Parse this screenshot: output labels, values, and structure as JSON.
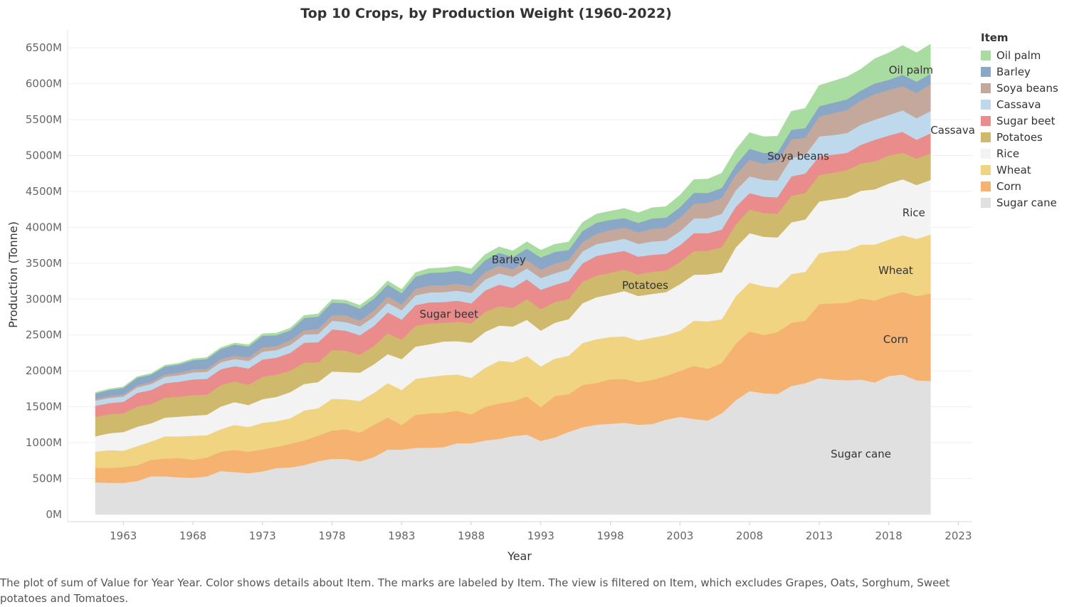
{
  "chart_data": {
    "type": "area",
    "stacked": true,
    "title": "Top 10 Crops, by Production Weight (1960-2022)",
    "xlabel": "Year",
    "ylabel": "Production (Tonne)",
    "xlim": [
      1959,
      2024
    ],
    "ylim": [
      -100,
      6750
    ],
    "x_ticks": [
      1963,
      1968,
      1973,
      1978,
      1983,
      1988,
      1993,
      1998,
      2003,
      2008,
      2013,
      2018,
      2023
    ],
    "y_ticks": [
      0,
      500,
      1000,
      1500,
      2000,
      2500,
      3000,
      3500,
      4000,
      4500,
      5000,
      5500,
      6000,
      6500
    ],
    "y_tick_suffix": "M",
    "grid": true,
    "legend": {
      "title": "Item",
      "position": "right"
    },
    "x": [
      1961,
      1962,
      1963,
      1964,
      1965,
      1966,
      1967,
      1968,
      1969,
      1970,
      1971,
      1972,
      1973,
      1974,
      1975,
      1976,
      1977,
      1978,
      1979,
      1980,
      1981,
      1982,
      1983,
      1984,
      1985,
      1986,
      1987,
      1988,
      1989,
      1990,
      1991,
      1992,
      1993,
      1994,
      1995,
      1996,
      1997,
      1998,
      1999,
      2000,
      2001,
      2002,
      2003,
      2004,
      2005,
      2006,
      2007,
      2008,
      2009,
      2010,
      2011,
      2012,
      2013,
      2014,
      2015,
      2016,
      2017,
      2018,
      2019,
      2020,
      2021
    ],
    "series": [
      {
        "name": "Sugar cane",
        "color": "#e0e0e0",
        "values": [
          448,
          441,
          440,
          466,
          533,
          531,
          518,
          511,
          531,
          606,
          591,
          575,
          600,
          646,
          655,
          688,
          743,
          775,
          774,
          739,
          800,
          905,
          903,
          929,
          930,
          938,
          993,
          994,
          1030,
          1053,
          1093,
          1112,
          1025,
          1073,
          1150,
          1216,
          1251,
          1264,
          1279,
          1250,
          1260,
          1322,
          1360,
          1330,
          1310,
          1410,
          1590,
          1720,
          1690,
          1680,
          1790,
          1830,
          1900,
          1880,
          1870,
          1880,
          1840,
          1930,
          1950,
          1870,
          1860
        ]
      },
      {
        "name": "Corn",
        "color": "#f5b271",
        "values": [
          205,
          206,
          220,
          220,
          228,
          248,
          270,
          251,
          261,
          268,
          307,
          299,
          305,
          296,
          331,
          344,
          355,
          394,
          410,
          402,
          447,
          448,
          342,
          460,
          478,
          478,
          453,
          400,
          470,
          493,
          482,
          533,
          470,
          578,
          525,
          588,
          581,
          620,
          609,
          592,
          614,
          605,
          640,
          740,
          720,
          700,
          790,
          830,
          810,
          860,
          880,
          870,
          1030,
          1060,
          1080,
          1130,
          1140,
          1120,
          1150,
          1170,
          1220
        ]
      },
      {
        "name": "Wheat",
        "color": "#f0d481",
        "values": [
          222,
          250,
          228,
          267,
          256,
          311,
          300,
          335,
          312,
          314,
          350,
          345,
          372,
          356,
          356,
          417,
          382,
          443,
          420,
          440,
          445,
          477,
          490,
          500,
          508,
          524,
          505,
          509,
          544,
          595,
          549,
          563,
          568,
          520,
          537,
          585,
          610,
          589,
          594,
          582,
          589,
          572,
          560,
          630,
          660,
          610,
          660,
          680,
          680,
          620,
          680,
          680,
          710,
          730,
          730,
          750,
          780,
          780,
          790,
          800,
          820
        ]
      },
      {
        "name": "Rice",
        "color": "#f3f3f3",
        "values": [
          215,
          235,
          260,
          270,
          254,
          260,
          275,
          280,
          285,
          316,
          318,
          306,
          330,
          340,
          364,
          370,
          365,
          380,
          380,
          395,
          400,
          405,
          430,
          450,
          455,
          470,
          464,
          490,
          500,
          490,
          495,
          505,
          498,
          500,
          510,
          555,
          585,
          595,
          630,
          620,
          610,
          600,
          650,
          640,
          655,
          655,
          680,
          690,
          690,
          700,
          720,
          730,
          720,
          720,
          740,
          750,
          770,
          780,
          780,
          750,
          760
        ]
      },
      {
        "name": "Potatoes",
        "color": "#ceb96c",
        "values": [
          270,
          267,
          262,
          278,
          267,
          278,
          278,
          287,
          280,
          298,
          290,
          283,
          312,
          310,
          300,
          298,
          272,
          300,
          298,
          250,
          255,
          290,
          270,
          290,
          290,
          260,
          270,
          270,
          280,
          270,
          260,
          290,
          300,
          290,
          280,
          300,
          300,
          300,
          300,
          300,
          310,
          300,
          310,
          330,
          330,
          350,
          320,
          330,
          330,
          330,
          370,
          370,
          370,
          370,
          380,
          380,
          390,
          390,
          370,
          370,
          370
        ]
      },
      {
        "name": "Sugar beet",
        "color": "#ea8c8c",
        "values": [
          155,
          153,
          159,
          192,
          196,
          201,
          209,
          218,
          220,
          221,
          211,
          227,
          240,
          236,
          246,
          276,
          283,
          286,
          278,
          271,
          280,
          292,
          280,
          288,
          294,
          290,
          293,
          278,
          297,
          302,
          279,
          272,
          270,
          237,
          252,
          256,
          275,
          272,
          260,
          248,
          235,
          232,
          231,
          250,
          243,
          245,
          246,
          227,
          228,
          228,
          270,
          270,
          260,
          253,
          238,
          260,
          300,
          280,
          290,
          260,
          280
        ]
      },
      {
        "name": "Cassava",
        "color": "#bfd9ec",
        "values": [
          71,
          72,
          74,
          79,
          83,
          88,
          90,
          97,
          99,
          98,
          100,
          104,
          108,
          107,
          110,
          115,
          112,
          120,
          121,
          124,
          128,
          130,
          130,
          136,
          137,
          138,
          139,
          145,
          152,
          156,
          155,
          153,
          163,
          161,
          164,
          165,
          165,
          163,
          170,
          177,
          184,
          186,
          195,
          203,
          209,
          219,
          228,
          233,
          234,
          235,
          254,
          260,
          277,
          272,
          276,
          280,
          280,
          285,
          300,
          300,
          310
        ]
      },
      {
        "name": "Soya beans",
        "color": "#c4a89c",
        "values": [
          27,
          27,
          29,
          29,
          32,
          36,
          37,
          42,
          42,
          44,
          46,
          49,
          62,
          55,
          66,
          59,
          73,
          78,
          94,
          81,
          86,
          94,
          80,
          93,
          101,
          95,
          100,
          95,
          108,
          108,
          103,
          117,
          116,
          137,
          127,
          130,
          144,
          160,
          157,
          161,
          178,
          181,
          191,
          205,
          214,
          221,
          219,
          231,
          223,
          265,
          262,
          241,
          276,
          307,
          323,
          335,
          358,
          349,
          337,
          353,
          372
        ]
      },
      {
        "name": "Barley",
        "color": "#8ba7c8",
        "values": [
          72,
          84,
          90,
          104,
          98,
          109,
          113,
          128,
          136,
          139,
          153,
          151,
          161,
          150,
          136,
          170,
          171,
          178,
          167,
          166,
          165,
          162,
          159,
          169,
          173,
          181,
          178,
          169,
          162,
          179,
          170,
          159,
          170,
          161,
          141,
          155,
          153,
          142,
          130,
          132,
          143,
          138,
          144,
          153,
          138,
          139,
          133,
          155,
          152,
          124,
          133,
          132,
          144,
          144,
          147,
          141,
          147,
          141,
          159,
          157,
          146
        ]
      },
      {
        "name": "Oil palm",
        "color": "#a8dca0",
        "values": [
          14,
          14,
          15,
          15,
          16,
          17,
          17,
          18,
          20,
          20,
          22,
          25,
          27,
          29,
          32,
          35,
          37,
          39,
          42,
          44,
          48,
          50,
          50,
          55,
          61,
          62,
          66,
          72,
          77,
          82,
          86,
          95,
          101,
          106,
          110,
          118,
          121,
          120,
          134,
          140,
          149,
          153,
          165,
          184,
          194,
          205,
          212,
          222,
          226,
          227,
          257,
          275,
          289,
          300,
          312,
          297,
          343,
          375,
          407,
          402,
          413
        ]
      }
    ],
    "area_labels": [
      {
        "series": "Sugar cane",
        "text": "Sugar cane",
        "x": 2016,
        "y": 840
      },
      {
        "series": "Corn",
        "text": "Corn",
        "x": 2018.5,
        "y": 2440
      },
      {
        "series": "Wheat",
        "text": "Wheat",
        "x": 2018.5,
        "y": 3400
      },
      {
        "series": "Rice",
        "text": "Rice",
        "x": 2019.8,
        "y": 4200
      },
      {
        "series": "Potatoes",
        "text": "Potatoes",
        "x": 2000.5,
        "y": 3190
      },
      {
        "series": "Sugar beet",
        "text": "Sugar beet",
        "x": 1986.4,
        "y": 2790
      },
      {
        "series": "Cassava",
        "text": "Cassava",
        "x": 2022.6,
        "y": 5350
      },
      {
        "series": "Soya beans",
        "text": "Soya beans",
        "x": 2011.5,
        "y": 4990
      },
      {
        "series": "Barley",
        "text": "Barley",
        "x": 1990.7,
        "y": 3550
      },
      {
        "series": "Oil palm",
        "text": "Oil palm",
        "x": 2019.6,
        "y": 6190
      }
    ]
  },
  "legend_items": [
    {
      "label": "Oil palm",
      "color": "#a8dca0"
    },
    {
      "label": "Barley",
      "color": "#8ba7c8"
    },
    {
      "label": "Soya beans",
      "color": "#c4a89c"
    },
    {
      "label": "Cassava",
      "color": "#bfd9ec"
    },
    {
      "label": "Sugar beet",
      "color": "#ea8c8c"
    },
    {
      "label": "Potatoes",
      "color": "#ceb96c"
    },
    {
      "label": "Rice",
      "color": "#f3f3f3"
    },
    {
      "label": "Wheat",
      "color": "#f0d481"
    },
    {
      "label": "Corn",
      "color": "#f5b271"
    },
    {
      "label": "Sugar cane",
      "color": "#e0e0e0"
    }
  ],
  "caption": "The plot of sum of Value for Year Year.  Color shows details about Item.  The marks are labeled by Item. The view is filtered on Item, which excludes Grapes, Oats, Sorghum, Sweet potatoes and Tomatoes."
}
